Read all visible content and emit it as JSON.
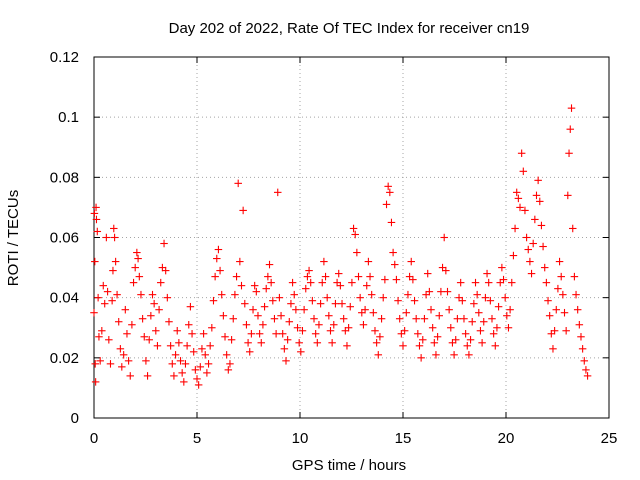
{
  "chart_data": {
    "type": "scatter",
    "title": "Day 202 of 2022, Rate Of TEC Index for receiver cn19",
    "xlabel": "GPS time / hours",
    "ylabel": "ROTI / TECUs",
    "xlim": [
      0,
      25
    ],
    "ylim": [
      0,
      0.12
    ],
    "x_ticks": [
      0,
      5,
      10,
      15,
      20,
      25
    ],
    "x_tick_labels": [
      "0",
      "5",
      "10",
      "15",
      "20",
      "25"
    ],
    "y_ticks": [
      0,
      0.02,
      0.04,
      0.06,
      0.08,
      0.1,
      0.12
    ],
    "y_tick_labels": [
      "0",
      "0.02",
      "0.04",
      "0.06",
      "0.08",
      "0.1",
      "0.12"
    ],
    "grid": true,
    "legend": "none",
    "marker": "+",
    "color": "#ff0000",
    "series": [
      {
        "points": [
          [
            0.0,
            0.035
          ],
          [
            0.02,
            0.068
          ],
          [
            0.04,
            0.052
          ],
          [
            0.06,
            0.018
          ],
          [
            0.08,
            0.012
          ],
          [
            0.1,
            0.07
          ],
          [
            0.12,
            0.066
          ],
          [
            0.16,
            0.062
          ],
          [
            0.2,
            0.04
          ],
          [
            0.24,
            0.027
          ],
          [
            0.3,
            0.019
          ],
          [
            0.38,
            0.029
          ],
          [
            0.45,
            0.044
          ],
          [
            0.52,
            0.038
          ],
          [
            0.6,
            0.06
          ],
          [
            0.66,
            0.042
          ],
          [
            0.72,
            0.026
          ],
          [
            0.8,
            0.018
          ],
          [
            0.88,
            0.039
          ],
          [
            0.92,
            0.049
          ],
          [
            0.96,
            0.063
          ],
          [
            1.0,
            0.06
          ],
          [
            1.05,
            0.052
          ],
          [
            1.12,
            0.041
          ],
          [
            1.2,
            0.032
          ],
          [
            1.28,
            0.023
          ],
          [
            1.35,
            0.017
          ],
          [
            1.44,
            0.021
          ],
          [
            1.52,
            0.036
          ],
          [
            1.6,
            0.028
          ],
          [
            1.68,
            0.019
          ],
          [
            1.76,
            0.014
          ],
          [
            1.84,
            0.031
          ],
          [
            1.92,
            0.045
          ],
          [
            2.0,
            0.05
          ],
          [
            2.08,
            0.055
          ],
          [
            2.14,
            0.053
          ],
          [
            2.2,
            0.047
          ],
          [
            2.28,
            0.041
          ],
          [
            2.36,
            0.033
          ],
          [
            2.44,
            0.027
          ],
          [
            2.52,
            0.019
          ],
          [
            2.6,
            0.014
          ],
          [
            2.68,
            0.026
          ],
          [
            2.76,
            0.034
          ],
          [
            2.84,
            0.041
          ],
          [
            2.92,
            0.038
          ],
          [
            3.0,
            0.029
          ],
          [
            3.08,
            0.024
          ],
          [
            3.16,
            0.036
          ],
          [
            3.24,
            0.045
          ],
          [
            3.32,
            0.05
          ],
          [
            3.4,
            0.058
          ],
          [
            3.48,
            0.049
          ],
          [
            3.56,
            0.04
          ],
          [
            3.64,
            0.032
          ],
          [
            3.72,
            0.024
          ],
          [
            3.8,
            0.018
          ],
          [
            3.88,
            0.014
          ],
          [
            3.96,
            0.021
          ],
          [
            4.04,
            0.029
          ],
          [
            4.12,
            0.025
          ],
          [
            4.2,
            0.019
          ],
          [
            4.28,
            0.015
          ],
          [
            4.36,
            0.012
          ],
          [
            4.44,
            0.018
          ],
          [
            4.52,
            0.024
          ],
          [
            4.6,
            0.031
          ],
          [
            4.68,
            0.037
          ],
          [
            4.76,
            0.028
          ],
          [
            4.84,
            0.022
          ],
          [
            4.92,
            0.016
          ],
          [
            5.0,
            0.013
          ],
          [
            5.08,
            0.011
          ],
          [
            5.16,
            0.017
          ],
          [
            5.24,
            0.023
          ],
          [
            5.32,
            0.028
          ],
          [
            5.4,
            0.021
          ],
          [
            5.48,
            0.015
          ],
          [
            5.56,
            0.018
          ],
          [
            5.64,
            0.024
          ],
          [
            5.72,
            0.03
          ],
          [
            5.8,
            0.039
          ],
          [
            5.88,
            0.047
          ],
          [
            5.96,
            0.053
          ],
          [
            6.04,
            0.056
          ],
          [
            6.12,
            0.049
          ],
          [
            6.2,
            0.041
          ],
          [
            6.28,
            0.034
          ],
          [
            6.36,
            0.027
          ],
          [
            6.44,
            0.021
          ],
          [
            6.52,
            0.016
          ],
          [
            6.6,
            0.018
          ],
          [
            6.68,
            0.026
          ],
          [
            6.76,
            0.033
          ],
          [
            6.84,
            0.041
          ],
          [
            6.92,
            0.047
          ],
          [
            7.0,
            0.078
          ],
          [
            7.08,
            0.052
          ],
          [
            7.16,
            0.044
          ],
          [
            7.24,
            0.069
          ],
          [
            7.32,
            0.038
          ],
          [
            7.4,
            0.031
          ],
          [
            7.48,
            0.025
          ],
          [
            7.56,
            0.022
          ],
          [
            7.64,
            0.028
          ],
          [
            7.72,
            0.036
          ],
          [
            7.8,
            0.044
          ],
          [
            7.88,
            0.042
          ],
          [
            7.96,
            0.034
          ],
          [
            8.04,
            0.028
          ],
          [
            8.12,
            0.025
          ],
          [
            8.2,
            0.031
          ],
          [
            8.28,
            0.037
          ],
          [
            8.36,
            0.043
          ],
          [
            8.44,
            0.047
          ],
          [
            8.52,
            0.051
          ],
          [
            8.6,
            0.045
          ],
          [
            8.68,
            0.039
          ],
          [
            8.76,
            0.033
          ],
          [
            8.84,
            0.028
          ],
          [
            8.92,
            0.075
          ],
          [
            9.0,
            0.04
          ],
          [
            9.08,
            0.034
          ],
          [
            9.16,
            0.028
          ],
          [
            9.24,
            0.023
          ],
          [
            9.32,
            0.019
          ],
          [
            9.4,
            0.026
          ],
          [
            9.48,
            0.032
          ],
          [
            9.56,
            0.038
          ],
          [
            9.64,
            0.045
          ],
          [
            9.72,
            0.041
          ],
          [
            9.8,
            0.036
          ],
          [
            9.88,
            0.03
          ],
          [
            9.96,
            0.025
          ],
          [
            10.04,
            0.022
          ],
          [
            10.12,
            0.029
          ],
          [
            10.2,
            0.036
          ],
          [
            10.28,
            0.043
          ],
          [
            10.36,
            0.047
          ],
          [
            10.44,
            0.049
          ],
          [
            10.52,
            0.045
          ],
          [
            10.6,
            0.039
          ],
          [
            10.68,
            0.033
          ],
          [
            10.76,
            0.028
          ],
          [
            10.84,
            0.025
          ],
          [
            10.92,
            0.031
          ],
          [
            11.0,
            0.038
          ],
          [
            11.08,
            0.045
          ],
          [
            11.16,
            0.052
          ],
          [
            11.24,
            0.047
          ],
          [
            11.32,
            0.04
          ],
          [
            11.4,
            0.034
          ],
          [
            11.48,
            0.029
          ],
          [
            11.56,
            0.025
          ],
          [
            11.64,
            0.031
          ],
          [
            11.72,
            0.038
          ],
          [
            11.8,
            0.045
          ],
          [
            11.88,
            0.048
          ],
          [
            11.96,
            0.044
          ],
          [
            12.04,
            0.038
          ],
          [
            12.12,
            0.033
          ],
          [
            12.2,
            0.029
          ],
          [
            12.28,
            0.024
          ],
          [
            12.36,
            0.03
          ],
          [
            12.44,
            0.037
          ],
          [
            12.52,
            0.045
          ],
          [
            12.6,
            0.063
          ],
          [
            12.68,
            0.061
          ],
          [
            12.76,
            0.055
          ],
          [
            12.84,
            0.047
          ],
          [
            12.92,
            0.04
          ],
          [
            13.0,
            0.035
          ],
          [
            13.08,
            0.031
          ],
          [
            13.16,
            0.036
          ],
          [
            13.24,
            0.044
          ],
          [
            13.32,
            0.052
          ],
          [
            13.4,
            0.047
          ],
          [
            13.48,
            0.041
          ],
          [
            13.56,
            0.035
          ],
          [
            13.64,
            0.029
          ],
          [
            13.72,
            0.025
          ],
          [
            13.8,
            0.021
          ],
          [
            13.88,
            0.027
          ],
          [
            13.96,
            0.033
          ],
          [
            14.04,
            0.04
          ],
          [
            14.12,
            0.046
          ],
          [
            14.2,
            0.071
          ],
          [
            14.28,
            0.077
          ],
          [
            14.36,
            0.075
          ],
          [
            14.44,
            0.065
          ],
          [
            14.52,
            0.055
          ],
          [
            14.6,
            0.051
          ],
          [
            14.68,
            0.046
          ],
          [
            14.76,
            0.039
          ],
          [
            14.84,
            0.033
          ],
          [
            14.92,
            0.028
          ],
          [
            15.0,
            0.024
          ],
          [
            15.08,
            0.029
          ],
          [
            15.16,
            0.035
          ],
          [
            15.24,
            0.041
          ],
          [
            15.32,
            0.047
          ],
          [
            15.4,
            0.052
          ],
          [
            15.48,
            0.046
          ],
          [
            15.56,
            0.039
          ],
          [
            15.64,
            0.033
          ],
          [
            15.72,
            0.028
          ],
          [
            15.8,
            0.024
          ],
          [
            15.88,
            0.02
          ],
          [
            15.96,
            0.026
          ],
          [
            16.04,
            0.033
          ],
          [
            16.12,
            0.041
          ],
          [
            16.2,
            0.048
          ],
          [
            16.28,
            0.042
          ],
          [
            16.36,
            0.036
          ],
          [
            16.44,
            0.03
          ],
          [
            16.52,
            0.025
          ],
          [
            16.6,
            0.021
          ],
          [
            16.68,
            0.027
          ],
          [
            16.76,
            0.034
          ],
          [
            16.84,
            0.042
          ],
          [
            16.92,
            0.05
          ],
          [
            17.0,
            0.06
          ],
          [
            17.08,
            0.049
          ],
          [
            17.16,
            0.042
          ],
          [
            17.24,
            0.036
          ],
          [
            17.32,
            0.03
          ],
          [
            17.4,
            0.025
          ],
          [
            17.48,
            0.021
          ],
          [
            17.56,
            0.026
          ],
          [
            17.64,
            0.033
          ],
          [
            17.72,
            0.04
          ],
          [
            17.8,
            0.045
          ],
          [
            17.88,
            0.039
          ],
          [
            17.96,
            0.033
          ],
          [
            18.04,
            0.028
          ],
          [
            18.12,
            0.024
          ],
          [
            18.2,
            0.021
          ],
          [
            18.28,
            0.026
          ],
          [
            18.36,
            0.032
          ],
          [
            18.44,
            0.038
          ],
          [
            18.52,
            0.045
          ],
          [
            18.6,
            0.041
          ],
          [
            18.68,
            0.035
          ],
          [
            18.76,
            0.029
          ],
          [
            18.84,
            0.025
          ],
          [
            18.92,
            0.032
          ],
          [
            19.0,
            0.04
          ],
          [
            19.08,
            0.048
          ],
          [
            19.16,
            0.045
          ],
          [
            19.24,
            0.039
          ],
          [
            19.32,
            0.033
          ],
          [
            19.4,
            0.028
          ],
          [
            19.48,
            0.024
          ],
          [
            19.56,
            0.03
          ],
          [
            19.64,
            0.037
          ],
          [
            19.72,
            0.045
          ],
          [
            19.8,
            0.05
          ],
          [
            19.88,
            0.046
          ],
          [
            19.96,
            0.04
          ],
          [
            20.04,
            0.034
          ],
          [
            20.12,
            0.03
          ],
          [
            20.2,
            0.036
          ],
          [
            20.28,
            0.045
          ],
          [
            20.36,
            0.054
          ],
          [
            20.44,
            0.063
          ],
          [
            20.52,
            0.075
          ],
          [
            20.6,
            0.073
          ],
          [
            20.68,
            0.07
          ],
          [
            20.76,
            0.088
          ],
          [
            20.84,
            0.082
          ],
          [
            20.92,
            0.069
          ],
          [
            21.0,
            0.06
          ],
          [
            21.08,
            0.056
          ],
          [
            21.16,
            0.052
          ],
          [
            21.24,
            0.048
          ],
          [
            21.32,
            0.058
          ],
          [
            21.4,
            0.066
          ],
          [
            21.48,
            0.074
          ],
          [
            21.56,
            0.079
          ],
          [
            21.64,
            0.072
          ],
          [
            21.72,
            0.064
          ],
          [
            21.8,
            0.057
          ],
          [
            21.88,
            0.05
          ],
          [
            21.96,
            0.045
          ],
          [
            22.04,
            0.039
          ],
          [
            22.12,
            0.034
          ],
          [
            22.2,
            0.028
          ],
          [
            22.28,
            0.023
          ],
          [
            22.36,
            0.029
          ],
          [
            22.44,
            0.036
          ],
          [
            22.52,
            0.043
          ],
          [
            22.6,
            0.052
          ],
          [
            22.68,
            0.047
          ],
          [
            22.76,
            0.041
          ],
          [
            22.84,
            0.035
          ],
          [
            22.92,
            0.029
          ],
          [
            23.0,
            0.074
          ],
          [
            23.06,
            0.088
          ],
          [
            23.12,
            0.096
          ],
          [
            23.18,
            0.103
          ],
          [
            23.24,
            0.063
          ],
          [
            23.32,
            0.047
          ],
          [
            23.4,
            0.041
          ],
          [
            23.48,
            0.036
          ],
          [
            23.56,
            0.031
          ],
          [
            23.64,
            0.027
          ],
          [
            23.72,
            0.023
          ],
          [
            23.8,
            0.019
          ],
          [
            23.88,
            0.016
          ],
          [
            23.96,
            0.014
          ]
        ]
      }
    ]
  }
}
